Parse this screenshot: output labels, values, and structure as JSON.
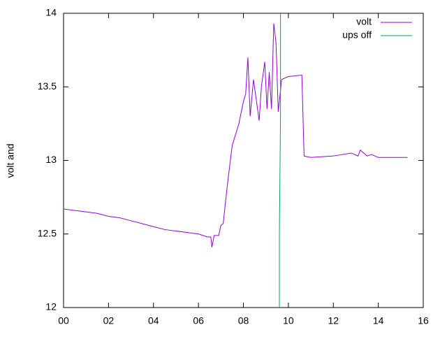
{
  "chart_data": {
    "type": "line",
    "y_label": "volt and",
    "xlim": [
      0,
      16
    ],
    "xticks": [
      {
        "value": 0,
        "label": "00"
      },
      {
        "value": 2,
        "label": "02"
      },
      {
        "value": 4,
        "label": "04"
      },
      {
        "value": 6,
        "label": "06"
      },
      {
        "value": 8,
        "label": "08"
      },
      10,
      12,
      14,
      16
    ],
    "ylim": [
      12,
      14
    ],
    "yticks": [
      12,
      12.5,
      13,
      13.5,
      14
    ],
    "legend": "top-right",
    "series": [
      {
        "name": "volt",
        "color": "#9400d3",
        "x": [
          0,
          0.5,
          1,
          1.5,
          2,
          2.5,
          3,
          3.5,
          4,
          4.5,
          5,
          5.5,
          6,
          6.4,
          6.55,
          6.6,
          6.7,
          6.9,
          7.0,
          7.1,
          7.3,
          7.5,
          7.6,
          7.8,
          8.0,
          8.1,
          8.2,
          8.3,
          8.45,
          8.7,
          8.8,
          8.95,
          9.05,
          9.15,
          9.25,
          9.35,
          9.45,
          9.55,
          9.7,
          10.0,
          10.6,
          10.7,
          11.0,
          12.0,
          12.8,
          13.1,
          13.2,
          13.5,
          13.7,
          14.0,
          15.3
        ],
        "values": [
          12.67,
          12.66,
          12.65,
          12.64,
          12.62,
          12.61,
          12.59,
          12.57,
          12.55,
          12.53,
          12.52,
          12.51,
          12.5,
          12.48,
          12.48,
          12.41,
          12.49,
          12.49,
          12.56,
          12.57,
          12.85,
          13.1,
          13.15,
          13.25,
          13.4,
          13.45,
          13.7,
          13.3,
          13.55,
          13.27,
          13.5,
          13.67,
          13.35,
          13.6,
          13.35,
          13.93,
          13.8,
          13.33,
          13.55,
          13.57,
          13.58,
          13.03,
          13.02,
          13.03,
          13.05,
          13.03,
          13.07,
          13.03,
          13.04,
          13.02,
          13.02
        ]
      },
      {
        "name": "ups off",
        "color": "#009e73",
        "x": [
          9.6,
          9.6,
          9.65,
          9.65
        ],
        "values": [
          12,
          12.5,
          13.3,
          14
        ]
      }
    ]
  }
}
